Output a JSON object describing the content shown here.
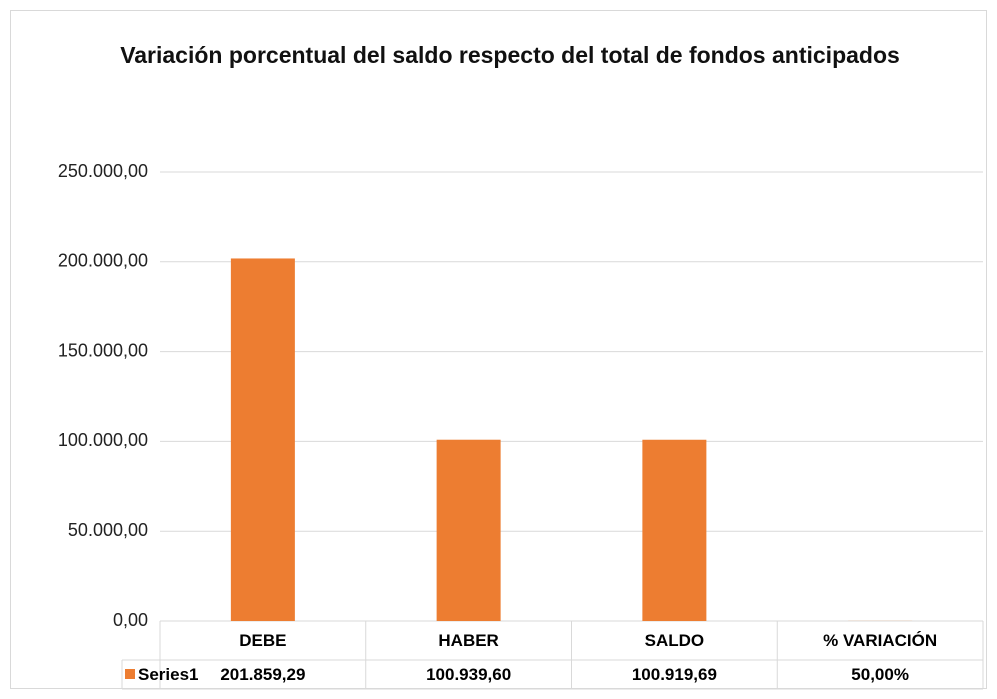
{
  "chart_data": {
    "type": "bar",
    "title": "Variación porcentual del saldo respecto del total de fondos anticipados",
    "categories": [
      "DEBE",
      "HABER",
      "SALDO",
      "% VARIACIÓN"
    ],
    "series": [
      {
        "name": "Series1",
        "color": "#ed7d31",
        "values": [
          201859.29,
          100939.6,
          100919.69,
          50
        ],
        "value_labels": [
          "201.859,29",
          "100.939,60",
          "100.919,69",
          "50,00%"
        ]
      }
    ],
    "ylim": [
      0,
      250000
    ],
    "yticks": [
      {
        "value": 0,
        "label": "0,00"
      },
      {
        "value": 50000,
        "label": "50.000,00"
      },
      {
        "value": 100000,
        "label": "100.000,00"
      },
      {
        "value": 150000,
        "label": "150.000,00"
      },
      {
        "value": 200000,
        "label": "200.000,00"
      },
      {
        "value": 250000,
        "label": "250.000,00"
      }
    ],
    "grid": true
  }
}
